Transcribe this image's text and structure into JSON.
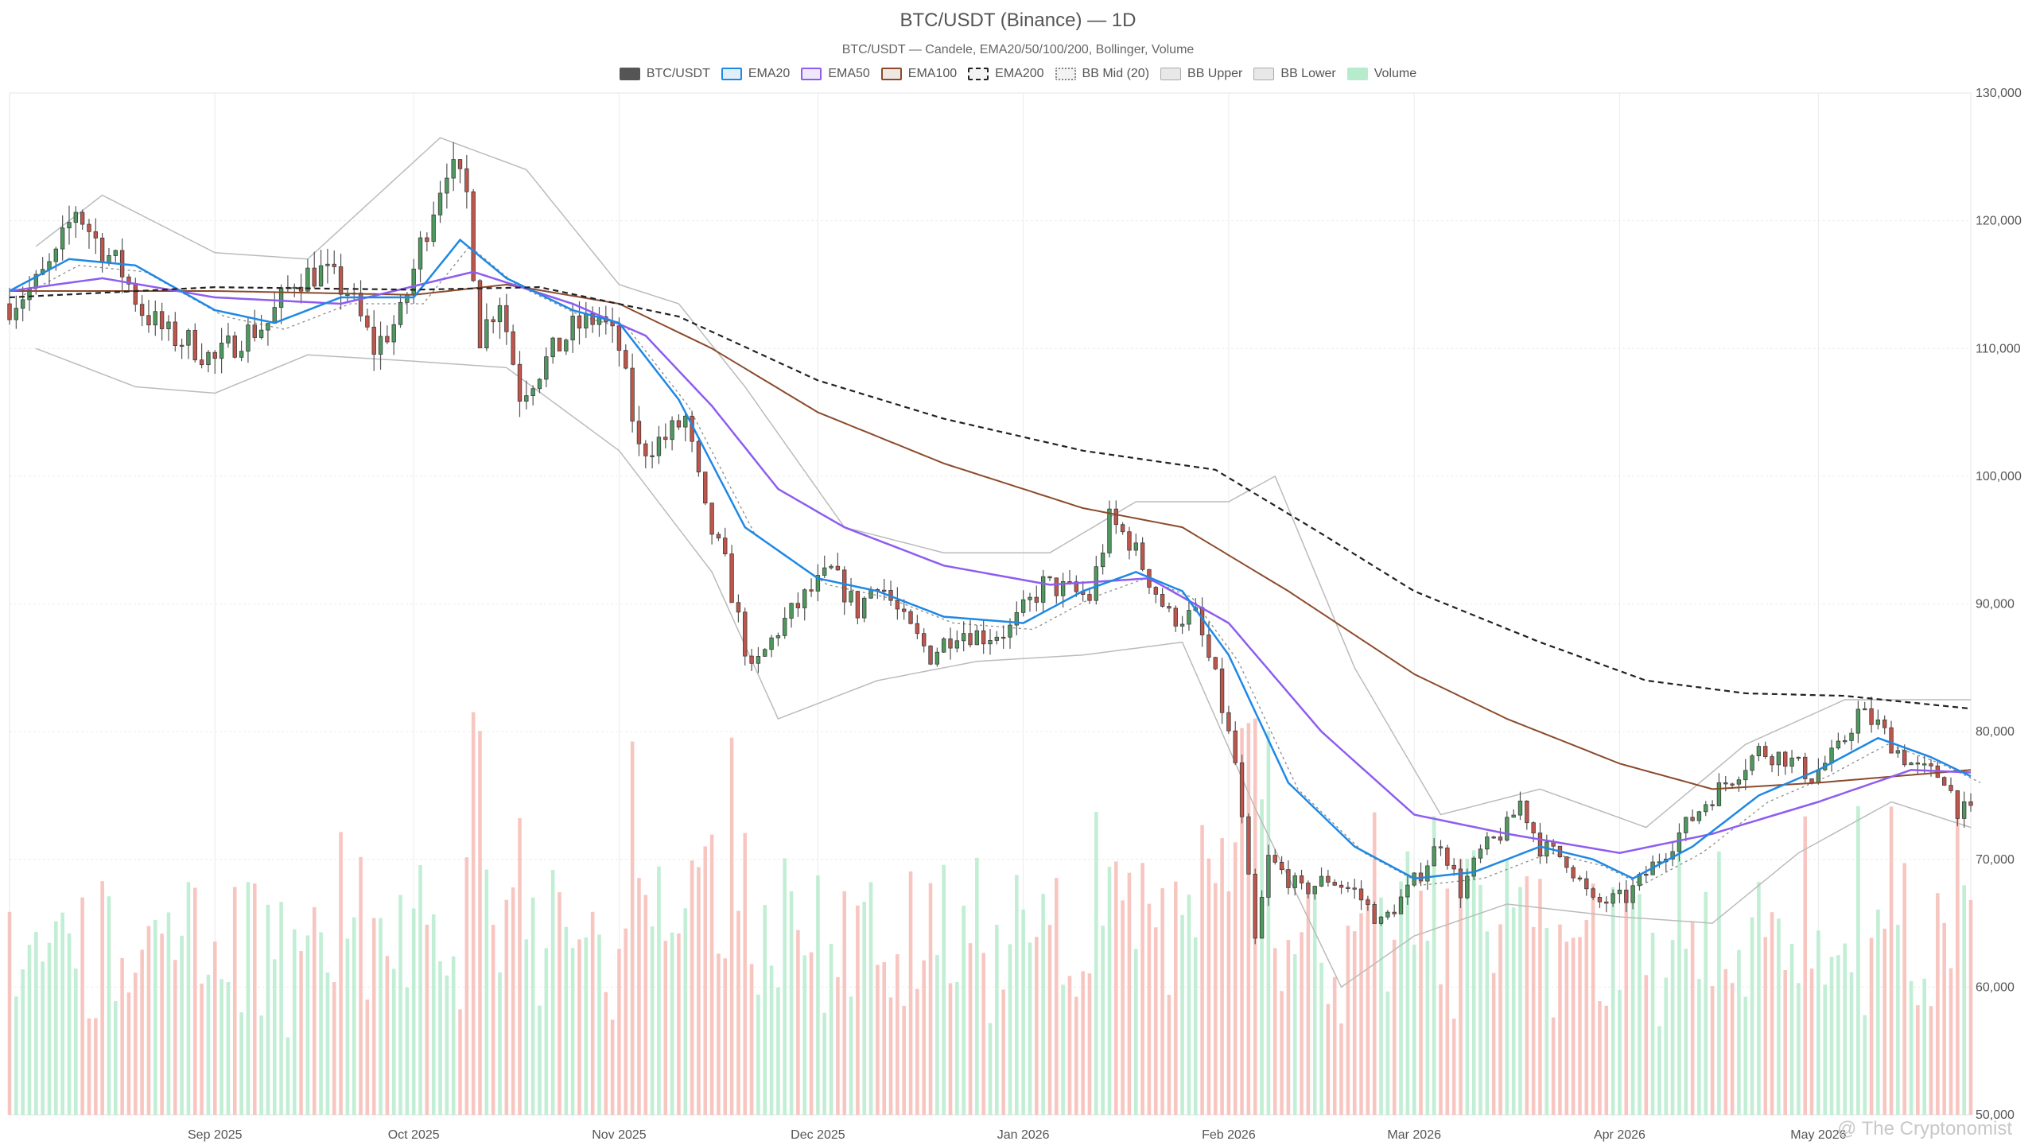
{
  "chart_data": {
    "type": "candlestick",
    "title": "BTC/USDT (Binance) — 1D",
    "subtitle": "BTC/USDT — Candele, EMA20/50/100/200, Bollinger, Volume",
    "legend": [
      {
        "label": "BTC/USDT",
        "color": "#555555",
        "style": "solid-fill"
      },
      {
        "label": "EMA20",
        "color": "#1e88e5",
        "style": "line"
      },
      {
        "label": "EMA50",
        "color": "#8e5cf0",
        "style": "line"
      },
      {
        "label": "EMA100",
        "color": "#8b4a2b",
        "style": "line"
      },
      {
        "label": "EMA200",
        "color": "#222222",
        "style": "dashed"
      },
      {
        "label": "BB Mid (20)",
        "color": "#888888",
        "style": "dotted"
      },
      {
        "label": "BB Upper",
        "color": "#aaaaaa",
        "style": "box"
      },
      {
        "label": "BB Lower",
        "color": "#aaaaaa",
        "style": "box"
      },
      {
        "label": "Volume",
        "color": "#b6ebcc",
        "style": "fill"
      }
    ],
    "legend_placement": "top-center",
    "ylim": [
      50000,
      130000
    ],
    "y_ticks": [
      "50,000",
      "60,000",
      "70,000",
      "80,000",
      "90,000",
      "100,000",
      "110,000",
      "120,000",
      "130,000"
    ],
    "y_tick_values": [
      50000,
      60000,
      70000,
      80000,
      90000,
      100000,
      110000,
      120000,
      130000
    ],
    "x_range": [
      "2025-08-01",
      "2026-05-24"
    ],
    "x_ticks": [
      {
        "label": "Sep 2025",
        "date": "2025-09-01"
      },
      {
        "label": "Oct 2025",
        "date": "2025-10-01"
      },
      {
        "label": "Nov 2025",
        "date": "2025-11-01"
      },
      {
        "label": "Dec 2025",
        "date": "2025-12-01"
      },
      {
        "label": "Jan 2026",
        "date": "2026-01-01"
      },
      {
        "label": "Feb 2026",
        "date": "2026-02-01"
      },
      {
        "label": "Mar 2026",
        "date": "2026-03-01"
      },
      {
        "label": "Apr 2026",
        "date": "2026-04-01"
      },
      {
        "label": "May 2026",
        "date": "2026-05-01"
      }
    ],
    "grid": true,
    "colors": {
      "up": "#4e9a5e",
      "down": "#c0564b",
      "vol_up": "#b6ebcc",
      "vol_down": "#f7bcb6",
      "bb": "#bbbbbb"
    },
    "price_close_keypoints": [
      [
        "2025-08-01",
        113500
      ],
      [
        "2025-08-05",
        115000
      ],
      [
        "2025-08-08",
        117000
      ],
      [
        "2025-08-11",
        121000
      ],
      [
        "2025-08-14",
        118500
      ],
      [
        "2025-08-18",
        116000
      ],
      [
        "2025-08-21",
        113000
      ],
      [
        "2025-08-25",
        111000
      ],
      [
        "2025-08-28",
        110500
      ],
      [
        "2025-09-01",
        109000
      ],
      [
        "2025-09-05",
        111000
      ],
      [
        "2025-09-09",
        112000
      ],
      [
        "2025-09-13",
        115500
      ],
      [
        "2025-09-17",
        116000
      ],
      [
        "2025-09-21",
        114500
      ],
      [
        "2025-09-25",
        110000
      ],
      [
        "2025-09-29",
        112500
      ],
      [
        "2025-10-02",
        118000
      ],
      [
        "2025-10-06",
        124500
      ],
      [
        "2025-10-09",
        122000
      ],
      [
        "2025-10-11",
        111000
      ],
      [
        "2025-10-14",
        114000
      ],
      [
        "2025-10-17",
        106500
      ],
      [
        "2025-10-21",
        109000
      ],
      [
        "2025-10-25",
        111500
      ],
      [
        "2025-10-29",
        112500
      ],
      [
        "2025-11-01",
        110000
      ],
      [
        "2025-11-04",
        102000
      ],
      [
        "2025-11-08",
        103000
      ],
      [
        "2025-11-11",
        104500
      ],
      [
        "2025-11-14",
        97000
      ],
      [
        "2025-11-17",
        93000
      ],
      [
        "2025-11-21",
        84500
      ],
      [
        "2025-11-25",
        88000
      ],
      [
        "2025-11-29",
        90500
      ],
      [
        "2025-12-03",
        92500
      ],
      [
        "2025-12-07",
        89500
      ],
      [
        "2025-12-10",
        92000
      ],
      [
        "2025-12-14",
        88500
      ],
      [
        "2025-12-18",
        86000
      ],
      [
        "2025-12-22",
        88000
      ],
      [
        "2025-12-26",
        87500
      ],
      [
        "2025-12-30",
        88000
      ],
      [
        "2026-01-04",
        91500
      ],
      [
        "2026-01-08",
        91000
      ],
      [
        "2026-01-11",
        90500
      ],
      [
        "2026-01-14",
        96500
      ],
      [
        "2026-01-17",
        95000
      ],
      [
        "2026-01-20",
        92000
      ],
      [
        "2026-01-23",
        89000
      ],
      [
        "2026-01-27",
        89000
      ],
      [
        "2026-01-30",
        84000
      ],
      [
        "2026-02-02",
        77500
      ],
      [
        "2026-02-05",
        63500
      ],
      [
        "2026-02-07",
        70000
      ],
      [
        "2026-02-12",
        67500
      ],
      [
        "2026-02-16",
        68500
      ],
      [
        "2026-02-20",
        67500
      ],
      [
        "2026-02-24",
        65000
      ],
      [
        "2026-02-28",
        67500
      ],
      [
        "2026-03-02",
        69000
      ],
      [
        "2026-03-05",
        71500
      ],
      [
        "2026-03-08",
        67500
      ],
      [
        "2026-03-11",
        70500
      ],
      [
        "2026-03-15",
        72500
      ],
      [
        "2026-03-17",
        74500
      ],
      [
        "2026-03-20",
        71000
      ],
      [
        "2026-03-24",
        70000
      ],
      [
        "2026-03-28",
        66500
      ],
      [
        "2026-04-02",
        67000
      ],
      [
        "2026-04-06",
        69500
      ],
      [
        "2026-04-10",
        72000
      ],
      [
        "2026-04-14",
        74500
      ],
      [
        "2026-04-18",
        76500
      ],
      [
        "2026-04-22",
        78500
      ],
      [
        "2026-04-26",
        78000
      ],
      [
        "2026-04-30",
        76500
      ],
      [
        "2026-05-04",
        78500
      ],
      [
        "2026-05-07",
        81500
      ],
      [
        "2026-05-10",
        80500
      ],
      [
        "2026-05-13",
        78500
      ],
      [
        "2026-05-16",
        77000
      ],
      [
        "2026-05-20",
        76500
      ],
      [
        "2026-05-22",
        74000
      ],
      [
        "2026-05-24",
        73500
      ]
    ],
    "ema20_keypoints": [
      [
        "2025-08-01",
        114500
      ],
      [
        "2025-08-10",
        117000
      ],
      [
        "2025-08-20",
        116500
      ],
      [
        "2025-09-01",
        113000
      ],
      [
        "2025-09-10",
        112000
      ],
      [
        "2025-09-20",
        114000
      ],
      [
        "2025-10-01",
        114000
      ],
      [
        "2025-10-08",
        118500
      ],
      [
        "2025-10-15",
        115500
      ],
      [
        "2025-10-25",
        113000
      ],
      [
        "2025-11-01",
        112000
      ],
      [
        "2025-11-10",
        106000
      ],
      [
        "2025-11-20",
        96000
      ],
      [
        "2025-12-01",
        92000
      ],
      [
        "2025-12-10",
        91000
      ],
      [
        "2025-12-20",
        89000
      ],
      [
        "2026-01-01",
        88500
      ],
      [
        "2026-01-10",
        91000
      ],
      [
        "2026-01-18",
        92500
      ],
      [
        "2026-01-25",
        91000
      ],
      [
        "2026-02-01",
        86000
      ],
      [
        "2026-02-10",
        76000
      ],
      [
        "2026-02-20",
        71000
      ],
      [
        "2026-03-01",
        68500
      ],
      [
        "2026-03-10",
        69000
      ],
      [
        "2026-03-20",
        71000
      ],
      [
        "2026-03-28",
        70000
      ],
      [
        "2026-04-03",
        68500
      ],
      [
        "2026-04-12",
        71000
      ],
      [
        "2026-04-22",
        75000
      ],
      [
        "2026-05-01",
        77000
      ],
      [
        "2026-05-10",
        79500
      ],
      [
        "2026-05-18",
        78000
      ],
      [
        "2026-05-24",
        76500
      ]
    ],
    "ema50_keypoints": [
      [
        "2025-08-01",
        114500
      ],
      [
        "2025-08-15",
        115500
      ],
      [
        "2025-09-01",
        114000
      ],
      [
        "2025-09-20",
        113500
      ],
      [
        "2025-10-10",
        116000
      ],
      [
        "2025-10-25",
        113500
      ],
      [
        "2025-11-05",
        111000
      ],
      [
        "2025-11-15",
        105500
      ],
      [
        "2025-11-25",
        99000
      ],
      [
        "2025-12-05",
        96000
      ],
      [
        "2025-12-20",
        93000
      ],
      [
        "2026-01-05",
        91500
      ],
      [
        "2026-01-20",
        92000
      ],
      [
        "2026-02-01",
        88500
      ],
      [
        "2026-02-15",
        80000
      ],
      [
        "2026-03-01",
        73500
      ],
      [
        "2026-03-15",
        72000
      ],
      [
        "2026-04-01",
        70500
      ],
      [
        "2026-04-15",
        72000
      ],
      [
        "2026-05-01",
        74500
      ],
      [
        "2026-05-15",
        77000
      ],
      [
        "2026-05-24",
        76800
      ]
    ],
    "ema100_keypoints": [
      [
        "2025-08-01",
        114500
      ],
      [
        "2025-09-01",
        114500
      ],
      [
        "2025-10-01",
        114200
      ],
      [
        "2025-10-15",
        115000
      ],
      [
        "2025-11-01",
        113500
      ],
      [
        "2025-11-15",
        110000
      ],
      [
        "2025-12-01",
        105000
      ],
      [
        "2025-12-20",
        101000
      ],
      [
        "2026-01-10",
        97500
      ],
      [
        "2026-01-25",
        96000
      ],
      [
        "2026-02-10",
        91000
      ],
      [
        "2026-03-01",
        84500
      ],
      [
        "2026-03-15",
        81000
      ],
      [
        "2026-04-01",
        77500
      ],
      [
        "2026-04-15",
        75500
      ],
      [
        "2026-05-01",
        76000
      ],
      [
        "2026-05-24",
        77000
      ]
    ],
    "ema200_keypoints": [
      [
        "2025-08-01",
        114000
      ],
      [
        "2025-09-01",
        114800
      ],
      [
        "2025-10-01",
        114600
      ],
      [
        "2025-10-20",
        114800
      ],
      [
        "2025-11-10",
        112500
      ],
      [
        "2025-12-01",
        107500
      ],
      [
        "2025-12-20",
        104500
      ],
      [
        "2026-01-10",
        102000
      ],
      [
        "2026-01-30",
        100500
      ],
      [
        "2026-02-15",
        95500
      ],
      [
        "2026-03-01",
        91000
      ],
      [
        "2026-03-20",
        87000
      ],
      [
        "2026-04-05",
        84000
      ],
      [
        "2026-04-20",
        83000
      ],
      [
        "2026-05-05",
        82800
      ],
      [
        "2026-05-24",
        81800
      ]
    ],
    "bb_upper_keypoints": [
      [
        "2025-08-05",
        118000
      ],
      [
        "2025-08-15",
        122000
      ],
      [
        "2025-09-01",
        117500
      ],
      [
        "2025-09-15",
        117000
      ],
      [
        "2025-10-05",
        126500
      ],
      [
        "2025-10-18",
        124000
      ],
      [
        "2025-11-01",
        115000
      ],
      [
        "2025-11-10",
        113500
      ],
      [
        "2025-11-20",
        107000
      ],
      [
        "2025-12-05",
        96000
      ],
      [
        "2025-12-20",
        94000
      ],
      [
        "2026-01-05",
        94000
      ],
      [
        "2026-01-18",
        98000
      ],
      [
        "2026-02-01",
        98000
      ],
      [
        "2026-02-08",
        100000
      ],
      [
        "2026-02-20",
        85000
      ],
      [
        "2026-03-05",
        73500
      ],
      [
        "2026-03-20",
        75500
      ],
      [
        "2026-04-05",
        72500
      ],
      [
        "2026-04-20",
        79000
      ],
      [
        "2026-05-05",
        82500
      ],
      [
        "2026-05-24",
        82500
      ]
    ],
    "bb_lower_keypoints": [
      [
        "2025-08-05",
        110000
      ],
      [
        "2025-08-20",
        107000
      ],
      [
        "2025-09-01",
        106500
      ],
      [
        "2025-09-15",
        109500
      ],
      [
        "2025-10-01",
        109000
      ],
      [
        "2025-10-15",
        108500
      ],
      [
        "2025-11-01",
        102000
      ],
      [
        "2025-11-15",
        92500
      ],
      [
        "2025-11-25",
        81000
      ],
      [
        "2025-12-10",
        84000
      ],
      [
        "2025-12-25",
        85500
      ],
      [
        "2026-01-10",
        86000
      ],
      [
        "2026-01-25",
        87000
      ],
      [
        "2026-02-05",
        74000
      ],
      [
        "2026-02-18",
        60000
      ],
      [
        "2026-03-01",
        64000
      ],
      [
        "2026-03-15",
        66500
      ],
      [
        "2026-04-01",
        65500
      ],
      [
        "2026-04-15",
        65000
      ],
      [
        "2026-04-28",
        70500
      ],
      [
        "2026-05-12",
        74500
      ],
      [
        "2026-05-24",
        72500
      ]
    ],
    "volume_note": "Volume shown as translucent bars in lower portion (relative scale, no axis)"
  },
  "watermark": "@ The Cryptonomist"
}
